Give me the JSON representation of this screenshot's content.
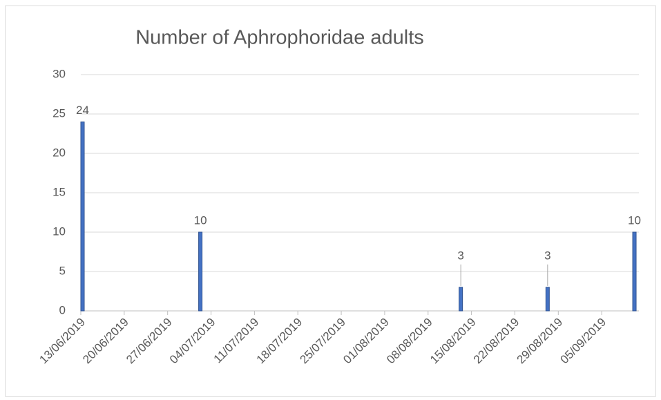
{
  "chart_data": {
    "type": "bar",
    "title": "Number of Aphrophoridae adults",
    "x": [
      "13/06/2019",
      "02/07/2019",
      "13/08/2019",
      "27/08/2019",
      "10/09/2019"
    ],
    "values": [
      24,
      10,
      3,
      3,
      10
    ],
    "color": "#4472c4",
    "xlim": [
      "13/06/2019",
      "11/09/2019"
    ],
    "xticks": [
      "13/06/2019",
      "20/06/2019",
      "27/06/2019",
      "04/07/2019",
      "11/07/2019",
      "18/07/2019",
      "25/07/2019",
      "01/08/2019",
      "08/08/2019",
      "15/08/2019",
      "22/08/2019",
      "29/08/2019",
      "05/09/2019"
    ],
    "ylim": [
      0,
      30
    ],
    "yticks": [
      0,
      5,
      10,
      15,
      20,
      25,
      30
    ],
    "grid": true
  }
}
